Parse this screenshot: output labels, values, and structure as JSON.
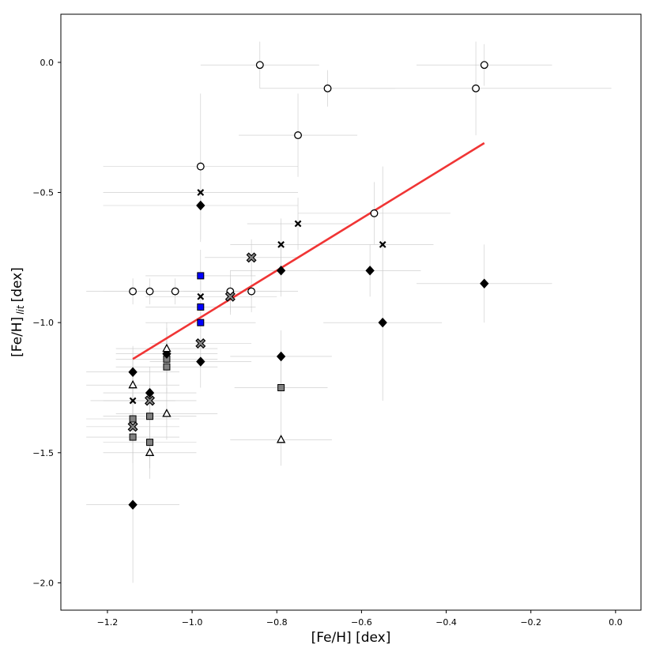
{
  "chart_data": {
    "type": "scatter",
    "xlabel": "[Fe/H] [dex]",
    "ylabel_main": "[Fe/H]",
    "ylabel_sub": "lit",
    "ylabel_unit": "[dex]",
    "xlim": [
      -1.31,
      0.06
    ],
    "ylim": [
      -2.105,
      0.185
    ],
    "xticks": [
      {
        "value": -1.2,
        "label": "−1.2"
      },
      {
        "value": -1.0,
        "label": "−1.0"
      },
      {
        "value": -0.8,
        "label": "−0.8"
      },
      {
        "value": -0.6,
        "label": "−0.6"
      },
      {
        "value": -0.4,
        "label": "−0.4"
      },
      {
        "value": -0.2,
        "label": "−0.2"
      },
      {
        "value": 0.0,
        "label": "0.0"
      }
    ],
    "yticks": [
      {
        "value": 0.0,
        "label": "0.0"
      },
      {
        "value": -0.5,
        "label": "−0.5"
      },
      {
        "value": -1.0,
        "label": "−1.0"
      },
      {
        "value": -1.5,
        "label": "−1.5"
      },
      {
        "value": -2.0,
        "label": "−2.0"
      }
    ],
    "grid": false,
    "fit_line": {
      "color": "#f03535",
      "x": [
        -1.14,
        -0.31
      ],
      "y": [
        -1.14,
        -0.31
      ]
    },
    "series": [
      {
        "marker": "circle",
        "fill": "#ffffff",
        "stroke": "#000000",
        "points": [
          {
            "x": -0.84,
            "y": -0.01,
            "xerr": [
              0.14,
              0.14
            ],
            "yerr": [
              0.09,
              0.09
            ]
          },
          {
            "x": -0.31,
            "y": -0.01,
            "xerr": [
              0.16,
              0.16
            ],
            "yerr": [
              0.08,
              0.08
            ]
          },
          {
            "x": -0.68,
            "y": -0.1,
            "xerr": [
              0.16,
              0.16
            ],
            "yerr": [
              0.07,
              0.07
            ]
          },
          {
            "x": -0.33,
            "y": -0.1,
            "xerr": [
              0.25,
              0.32
            ],
            "yerr": [
              0.18,
              0.18
            ]
          },
          {
            "x": -0.75,
            "y": -0.28,
            "xerr": [
              0.14,
              0.14
            ],
            "yerr": [
              0.16,
              0.16
            ]
          },
          {
            "x": -0.98,
            "y": -0.4,
            "xerr": [
              0.23,
              0.23
            ],
            "yerr": [
              0.28,
              0.28
            ]
          },
          {
            "x": -0.57,
            "y": -0.58,
            "xerr": [
              0.18,
              0.18
            ],
            "yerr": [
              0.12,
              0.12
            ]
          },
          {
            "x": -1.14,
            "y": -0.88,
            "xerr": [
              0.11,
              0.11
            ],
            "yerr": [
              0.05,
              0.05
            ]
          },
          {
            "x": -1.1,
            "y": -0.88,
            "xerr": [
              0.11,
              0.11
            ],
            "yerr": [
              0.05,
              0.05
            ]
          },
          {
            "x": -1.04,
            "y": -0.88,
            "xerr": [
              0.11,
              0.11
            ],
            "yerr": [
              0.05,
              0.05
            ]
          },
          {
            "x": -0.91,
            "y": -0.88,
            "xerr": [
              0.11,
              0.11
            ],
            "yerr": [
              0.08,
              0.08
            ]
          },
          {
            "x": -0.86,
            "y": -0.88,
            "xerr": [
              0.11,
              0.11
            ],
            "yerr": [
              0.08,
              0.08
            ]
          }
        ]
      },
      {
        "marker": "x",
        "fill": "#000000",
        "stroke": "#000000",
        "points": [
          {
            "x": -0.98,
            "y": -0.5,
            "xerr": [
              0.23,
              0.23
            ],
            "yerr": [
              0.1,
              0.1
            ]
          },
          {
            "x": -0.75,
            "y": -0.62,
            "xerr": [
              0.12,
              0.12
            ],
            "yerr": [
              0.1,
              0.1
            ]
          },
          {
            "x": -0.79,
            "y": -0.7,
            "xerr": [
              0.12,
              0.12
            ],
            "yerr": [
              0.1,
              0.1
            ]
          },
          {
            "x": -0.55,
            "y": -0.7,
            "xerr": [
              0.12,
              0.12
            ],
            "yerr": [
              0.3,
              0.3
            ]
          },
          {
            "x": -0.98,
            "y": -0.9,
            "xerr": [
              0.13,
              0.13
            ],
            "yerr": [
              0.1,
              0.1
            ]
          },
          {
            "x": -1.14,
            "y": -1.3,
            "xerr": [
              0.1,
              0.1
            ],
            "yerr": [
              0.1,
              0.1
            ]
          }
        ]
      },
      {
        "marker": "x-thick",
        "fill": "#888888",
        "stroke": "#000000",
        "points": [
          {
            "x": -0.86,
            "y": -0.75,
            "xerr": [
              0.11,
              0.11
            ],
            "yerr": [
              0.07,
              0.07
            ]
          },
          {
            "x": -0.91,
            "y": -0.9,
            "xerr": [
              0.11,
              0.11
            ],
            "yerr": [
              0.07,
              0.07
            ]
          },
          {
            "x": -0.98,
            "y": -1.08,
            "xerr": [
              0.12,
              0.12
            ],
            "yerr": [
              0.06,
              0.06
            ]
          },
          {
            "x": -1.1,
            "y": -1.3,
            "xerr": [
              0.11,
              0.11
            ],
            "yerr": [
              0.06,
              0.06
            ]
          },
          {
            "x": -1.14,
            "y": -1.4,
            "xerr": [
              0.11,
              0.11
            ],
            "yerr": [
              0.06,
              0.06
            ]
          }
        ]
      },
      {
        "marker": "square",
        "fill": "#0000ff",
        "stroke": "#000000",
        "points": [
          {
            "x": -0.98,
            "y": -0.82,
            "xerr": [
              0.13,
              0.13
            ],
            "yerr": [
              0.1,
              0.1
            ]
          },
          {
            "x": -0.98,
            "y": -0.94,
            "xerr": [
              0.13,
              0.13
            ],
            "yerr": [
              0.1,
              0.1
            ]
          },
          {
            "x": -0.98,
            "y": -1.0,
            "xerr": [
              0.13,
              0.13
            ],
            "yerr": [
              0.1,
              0.1
            ]
          }
        ]
      },
      {
        "marker": "square",
        "fill": "#808080",
        "stroke": "#000000",
        "points": [
          {
            "x": -1.06,
            "y": -1.14,
            "xerr": [
              0.12,
              0.12
            ],
            "yerr": [
              0.1,
              0.1
            ]
          },
          {
            "x": -1.06,
            "y": -1.17,
            "xerr": [
              0.12,
              0.12
            ],
            "yerr": [
              0.1,
              0.1
            ]
          },
          {
            "x": -0.79,
            "y": -1.25,
            "xerr": [
              0.11,
              0.11
            ],
            "yerr": [
              0.1,
              0.1
            ]
          },
          {
            "x": -1.1,
            "y": -1.36,
            "xerr": [
              0.11,
              0.11
            ],
            "yerr": [
              0.1,
              0.1
            ]
          },
          {
            "x": -1.14,
            "y": -1.37,
            "xerr": [
              0.11,
              0.11
            ],
            "yerr": [
              0.1,
              0.1
            ]
          },
          {
            "x": -1.14,
            "y": -1.44,
            "xerr": [
              0.11,
              0.11
            ],
            "yerr": [
              0.1,
              0.1
            ]
          },
          {
            "x": -1.1,
            "y": -1.46,
            "xerr": [
              0.11,
              0.11
            ],
            "yerr": [
              0.1,
              0.1
            ]
          }
        ]
      },
      {
        "marker": "diamond",
        "fill": "#000000",
        "stroke": "#000000",
        "points": [
          {
            "x": -0.98,
            "y": -0.55,
            "xerr": [
              0.23,
              0.23
            ],
            "yerr": [
              0.14,
              0.14
            ]
          },
          {
            "x": -0.79,
            "y": -0.8,
            "xerr": [
              0.12,
              0.12
            ],
            "yerr": [
              0.1,
              0.1
            ]
          },
          {
            "x": -0.58,
            "y": -0.8,
            "xerr": [
              0.12,
              0.12
            ],
            "yerr": [
              0.1,
              0.1
            ]
          },
          {
            "x": -0.31,
            "y": -0.85,
            "xerr": [
              0.16,
              0.16
            ],
            "yerr": [
              0.15,
              0.15
            ]
          },
          {
            "x": -0.55,
            "y": -1.0,
            "xerr": [
              0.14,
              0.14
            ],
            "yerr": [
              0.3,
              0.3
            ]
          },
          {
            "x": -1.06,
            "y": -1.12,
            "xerr": [
              0.12,
              0.12
            ],
            "yerr": [
              0.1,
              0.1
            ]
          },
          {
            "x": -0.79,
            "y": -1.13,
            "xerr": [
              0.12,
              0.12
            ],
            "yerr": [
              0.1,
              0.1
            ]
          },
          {
            "x": -0.98,
            "y": -1.15,
            "xerr": [
              0.12,
              0.12
            ],
            "yerr": [
              0.1,
              0.1
            ]
          },
          {
            "x": -1.14,
            "y": -1.19,
            "xerr": [
              0.11,
              0.11
            ],
            "yerr": [
              0.1,
              0.1
            ]
          },
          {
            "x": -1.1,
            "y": -1.27,
            "xerr": [
              0.11,
              0.11
            ],
            "yerr": [
              0.1,
              0.1
            ]
          },
          {
            "x": -1.14,
            "y": -1.7,
            "xerr": [
              0.11,
              0.11
            ],
            "yerr": [
              0.3,
              0.3
            ]
          }
        ]
      },
      {
        "marker": "triangle",
        "fill": "#ffffff",
        "stroke": "#000000",
        "points": [
          {
            "x": -1.06,
            "y": -1.1,
            "xerr": [
              0.12,
              0.12
            ],
            "yerr": [
              0.1,
              0.1
            ]
          },
          {
            "x": -1.14,
            "y": -1.24,
            "xerr": [
              0.11,
              0.11
            ],
            "yerr": [
              0.1,
              0.1
            ]
          },
          {
            "x": -1.06,
            "y": -1.35,
            "xerr": [
              0.12,
              0.12
            ],
            "yerr": [
              0.1,
              0.1
            ]
          },
          {
            "x": -0.79,
            "y": -1.45,
            "xerr": [
              0.12,
              0.12
            ],
            "yerr": [
              0.1,
              0.1
            ]
          },
          {
            "x": -1.1,
            "y": -1.5,
            "xerr": [
              0.11,
              0.11
            ],
            "yerr": [
              0.1,
              0.1
            ]
          }
        ]
      }
    ]
  }
}
